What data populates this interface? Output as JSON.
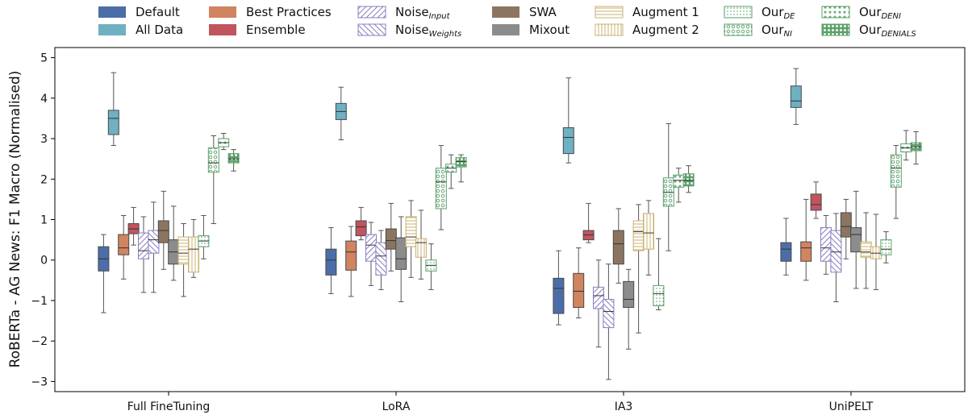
{
  "chart_data": {
    "type": "box",
    "ylabel": "RoBERTa - AG News: F1 Macro (Normalised)",
    "xlabel": "",
    "ylim": [
      -3.25,
      5.25
    ],
    "yticks": [
      -3,
      -2,
      -1,
      0,
      1,
      2,
      3,
      4,
      5
    ],
    "categories": [
      "Full FineTuning",
      "LoRA",
      "IA3",
      "UniPELT"
    ],
    "legend_position": "top",
    "series": [
      {
        "name": "Default",
        "name_sub": "",
        "color": "#4c6ea8",
        "fill": "solid",
        "boxes": [
          {
            "whislo": -1.3,
            "q1": -0.27,
            "med": 0.03,
            "q3": 0.33,
            "whishi": 0.63
          },
          {
            "whislo": -0.83,
            "q1": -0.37,
            "med": 0.0,
            "q3": 0.27,
            "whishi": 0.8
          },
          {
            "whislo": -1.6,
            "q1": -1.32,
            "med": -0.7,
            "q3": -0.45,
            "whishi": 0.23
          },
          {
            "whislo": -0.37,
            "q1": -0.03,
            "med": 0.27,
            "q3": 0.43,
            "whishi": 1.03
          }
        ]
      },
      {
        "name": "All Data",
        "name_sub": "",
        "color": "#6fb0c3",
        "fill": "solid",
        "boxes": [
          {
            "whislo": 2.83,
            "q1": 3.1,
            "med": 3.5,
            "q3": 3.7,
            "whishi": 4.63
          },
          {
            "whislo": 2.97,
            "q1": 3.47,
            "med": 3.67,
            "q3": 3.87,
            "whishi": 4.27
          },
          {
            "whislo": 2.4,
            "q1": 2.63,
            "med": 3.03,
            "q3": 3.27,
            "whishi": 4.5
          },
          {
            "whislo": 3.35,
            "q1": 3.77,
            "med": 3.93,
            "q3": 4.3,
            "whishi": 4.73
          }
        ]
      },
      {
        "name": "Best Practices",
        "name_sub": "",
        "color": "#d0845f",
        "fill": "solid",
        "boxes": [
          {
            "whislo": -0.47,
            "q1": 0.13,
            "med": 0.3,
            "q3": 0.63,
            "whishi": 1.1
          },
          {
            "whislo": -0.9,
            "q1": -0.25,
            "med": 0.2,
            "q3": 0.47,
            "whishi": 0.83
          },
          {
            "whislo": -1.43,
            "q1": -1.17,
            "med": -0.77,
            "q3": -0.33,
            "whishi": 0.3
          },
          {
            "whislo": -0.5,
            "q1": -0.03,
            "med": 0.3,
            "q3": 0.45,
            "whishi": 1.5
          }
        ]
      },
      {
        "name": "Ensemble",
        "name_sub": "",
        "color": "#c0555e",
        "fill": "solid",
        "boxes": [
          {
            "whislo": 0.37,
            "q1": 0.65,
            "med": 0.77,
            "q3": 0.9,
            "whishi": 1.3
          },
          {
            "whislo": 0.5,
            "q1": 0.6,
            "med": 0.82,
            "q3": 0.97,
            "whishi": 1.3
          },
          {
            "whislo": 0.43,
            "q1": 0.5,
            "med": 0.62,
            "q3": 0.73,
            "whishi": 1.4
          },
          {
            "whislo": 1.03,
            "q1": 1.23,
            "med": 1.37,
            "q3": 1.63,
            "whishi": 1.93
          }
        ]
      },
      {
        "name": "Noise",
        "name_sub": "Input",
        "color": "#8a7fc2",
        "fill": "hatch",
        "boxes": [
          {
            "whislo": -0.8,
            "q1": 0.03,
            "med": 0.23,
            "q3": 0.67,
            "whishi": 1.07
          },
          {
            "whislo": -0.63,
            "q1": -0.03,
            "med": 0.37,
            "q3": 0.63,
            "whishi": 0.93
          },
          {
            "whislo": -2.15,
            "q1": -1.2,
            "med": -0.88,
            "q3": -0.67,
            "whishi": 0.0
          },
          {
            "whislo": -0.35,
            "q1": -0.03,
            "med": 0.3,
            "q3": 0.8,
            "whishi": 1.1
          }
        ]
      },
      {
        "name": "Noise",
        "name_sub": "Weights",
        "color": "#8a7fc2",
        "fill": "hatch-dense",
        "boxes": [
          {
            "whislo": -0.8,
            "q1": 0.17,
            "med": 0.5,
            "q3": 0.73,
            "whishi": 1.43
          },
          {
            "whislo": -0.73,
            "q1": -0.37,
            "med": 0.1,
            "q3": 0.43,
            "whishi": 0.73
          },
          {
            "whislo": -2.95,
            "q1": -1.67,
            "med": -1.27,
            "q3": -0.97,
            "whishi": -0.1
          },
          {
            "whislo": -1.03,
            "q1": -0.3,
            "med": 0.2,
            "q3": 0.73,
            "whishi": 1.15
          }
        ]
      },
      {
        "name": "SWA",
        "name_sub": "",
        "color": "#8c7560",
        "fill": "solid",
        "boxes": [
          {
            "whislo": -0.23,
            "q1": 0.43,
            "med": 0.73,
            "q3": 0.97,
            "whishi": 1.7
          },
          {
            "whislo": -0.27,
            "q1": 0.27,
            "med": 0.48,
            "q3": 0.77,
            "whishi": 1.4
          },
          {
            "whislo": -0.57,
            "q1": -0.1,
            "med": 0.4,
            "q3": 0.73,
            "whishi": 1.27
          },
          {
            "whislo": 0.03,
            "q1": 0.57,
            "med": 0.83,
            "q3": 1.17,
            "whishi": 1.5
          }
        ]
      },
      {
        "name": "Mixout",
        "name_sub": "",
        "color": "#8c8c8c",
        "fill": "solid",
        "boxes": [
          {
            "whislo": -0.5,
            "q1": -0.1,
            "med": 0.2,
            "q3": 0.5,
            "whishi": 1.33
          },
          {
            "whislo": -1.03,
            "q1": -0.23,
            "med": 0.03,
            "q3": 0.55,
            "whishi": 1.07
          },
          {
            "whislo": -2.2,
            "q1": -1.17,
            "med": -0.97,
            "q3": -0.53,
            "whishi": -0.23
          },
          {
            "whislo": -0.7,
            "q1": 0.2,
            "med": 0.63,
            "q3": 0.8,
            "whishi": 1.7
          }
        ]
      },
      {
        "name": "Augment 1",
        "name_sub": "",
        "color": "#c9b070",
        "fill": "hlines",
        "boxes": [
          {
            "whislo": -0.9,
            "q1": -0.1,
            "med": 0.17,
            "q3": 0.57,
            "whishi": 0.9
          },
          {
            "whislo": -0.43,
            "q1": 0.33,
            "med": 0.57,
            "q3": 1.07,
            "whishi": 1.47
          },
          {
            "whislo": -1.8,
            "q1": 0.23,
            "med": 0.7,
            "q3": 0.97,
            "whishi": 1.37
          },
          {
            "whislo": -0.7,
            "q1": 0.07,
            "med": 0.2,
            "q3": 0.45,
            "whishi": 1.17
          }
        ]
      },
      {
        "name": "Augment 2",
        "name_sub": "",
        "color": "#c9b070",
        "fill": "vlines",
        "boxes": [
          {
            "whislo": -0.43,
            "q1": -0.3,
            "med": 0.27,
            "q3": 0.57,
            "whishi": 1.0
          },
          {
            "whislo": -0.47,
            "q1": 0.07,
            "med": 0.43,
            "q3": 0.53,
            "whishi": 1.23
          },
          {
            "whislo": -0.37,
            "q1": 0.27,
            "med": 0.67,
            "q3": 1.15,
            "whishi": 1.47
          },
          {
            "whislo": -0.73,
            "q1": 0.03,
            "med": 0.17,
            "q3": 0.33,
            "whishi": 1.13
          }
        ]
      },
      {
        "name": "Our",
        "name_sub": "DE",
        "color": "#5aa06a",
        "fill": "dots",
        "boxes": [
          {
            "whislo": 0.03,
            "q1": 0.33,
            "med": 0.47,
            "q3": 0.6,
            "whishi": 1.1
          },
          {
            "whislo": -0.73,
            "q1": -0.27,
            "med": -0.13,
            "q3": 0.0,
            "whishi": 0.4
          },
          {
            "whislo": -1.23,
            "q1": -1.13,
            "med": -0.83,
            "q3": -0.63,
            "whishi": 0.53
          },
          {
            "whislo": -0.07,
            "q1": 0.13,
            "med": 0.27,
            "q3": 0.5,
            "whishi": 0.7
          }
        ]
      },
      {
        "name": "Our",
        "name_sub": "NI",
        "color": "#5aa06a",
        "fill": "circles",
        "boxes": [
          {
            "whislo": 0.9,
            "q1": 2.17,
            "med": 2.4,
            "q3": 2.77,
            "whishi": 3.07
          },
          {
            "whislo": 0.75,
            "q1": 1.27,
            "med": 1.93,
            "q3": 2.27,
            "whishi": 2.83
          },
          {
            "whislo": 0.23,
            "q1": 1.33,
            "med": 1.67,
            "q3": 2.03,
            "whishi": 3.37
          },
          {
            "whislo": 1.03,
            "q1": 1.8,
            "med": 2.27,
            "q3": 2.6,
            "whishi": 2.83
          }
        ]
      },
      {
        "name": "Our",
        "name_sub": "DENI",
        "color": "#5aa06a",
        "fill": "stars",
        "boxes": [
          {
            "whislo": 2.73,
            "q1": 2.8,
            "med": 2.9,
            "q3": 3.0,
            "whishi": 3.13
          },
          {
            "whislo": 1.77,
            "q1": 2.17,
            "med": 2.27,
            "q3": 2.37,
            "whishi": 2.6
          },
          {
            "whislo": 1.43,
            "q1": 1.8,
            "med": 1.97,
            "q3": 2.1,
            "whishi": 2.27
          },
          {
            "whislo": 2.47,
            "q1": 2.67,
            "med": 2.77,
            "q3": 2.87,
            "whishi": 3.2
          }
        ]
      },
      {
        "name": "Our",
        "name_sub": "DENIALS",
        "color": "#5aa06a",
        "fill": "grid",
        "boxes": [
          {
            "whislo": 2.2,
            "q1": 2.4,
            "med": 2.5,
            "q3": 2.63,
            "whishi": 2.73
          },
          {
            "whislo": 1.93,
            "q1": 2.3,
            "med": 2.43,
            "q3": 2.53,
            "whishi": 2.6
          },
          {
            "whislo": 1.67,
            "q1": 1.83,
            "med": 1.97,
            "q3": 2.13,
            "whishi": 2.33
          },
          {
            "whislo": 2.37,
            "q1": 2.7,
            "med": 2.8,
            "q3": 2.9,
            "whishi": 3.17
          }
        ]
      }
    ]
  }
}
